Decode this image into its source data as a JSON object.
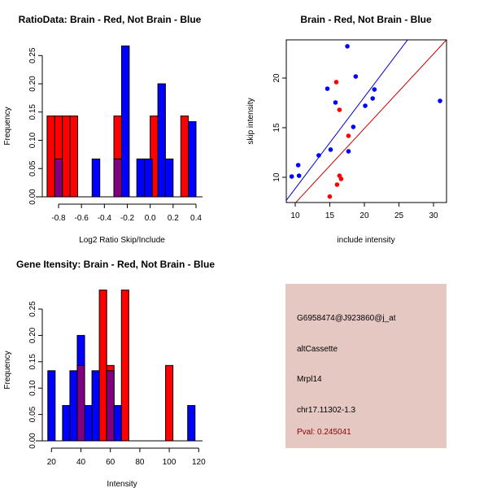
{
  "chart_data": [
    {
      "type": "bar",
      "subtype": "histogram",
      "title": "RatioData: Brain - Red, Not Brain - Blue",
      "xlabel": "Log2 Ratio Skip/Include",
      "ylabel": "Frequency",
      "xlim": [
        -0.9,
        0.4
      ],
      "ylim": [
        0,
        0.27
      ],
      "xticks": [
        "-0.8",
        "-0.6",
        "-0.4",
        "-0.2",
        "0.0",
        "0.2",
        "0.4"
      ],
      "xtick_values": [
        -0.8,
        -0.6,
        -0.4,
        -0.2,
        0.0,
        0.2,
        0.4
      ],
      "yticks": [
        "0.00",
        "0.05",
        "0.10",
        "0.15",
        "0.20",
        "0.25"
      ],
      "ytick_values": [
        0,
        0.05,
        0.1,
        0.15,
        0.2,
        0.25
      ],
      "series": [
        {
          "name": "Brain",
          "color": "#ff0000",
          "bins": [
            [
              -0.9,
              -0.833,
              0.143
            ],
            [
              -0.833,
              -0.767,
              0.143
            ],
            [
              -0.767,
              -0.7,
              0.143
            ],
            [
              -0.7,
              -0.633,
              0.143
            ],
            [
              -0.317,
              -0.25,
              0.143
            ],
            [
              0.0,
              0.067,
              0.143
            ],
            [
              0.267,
              0.333,
              0.143
            ]
          ]
        },
        {
          "name": "Not Brain",
          "color": "#0000ff",
          "bins": [
            [
              -0.833,
              -0.767,
              0.067
            ],
            [
              -0.507,
              -0.44,
              0.067
            ],
            [
              -0.317,
              -0.25,
              0.067
            ],
            [
              -0.25,
              -0.183,
              0.267
            ],
            [
              -0.117,
              -0.05,
              0.067
            ],
            [
              -0.05,
              0.017,
              0.067
            ],
            [
              0.067,
              0.133,
              0.2
            ],
            [
              0.133,
              0.2,
              0.067
            ],
            [
              0.333,
              0.4,
              0.133
            ]
          ]
        }
      ],
      "overlap_color": "#800080"
    },
    {
      "type": "scatter",
      "title": "Brain - Red, Not Brain - Blue",
      "xlabel": "include intensity",
      "ylabel": "skip intensity",
      "xlim": [
        8.71,
        31.88
      ],
      "ylim": [
        7.46,
        23.85
      ],
      "xticks": [
        "10",
        "15",
        "20",
        "25",
        "30"
      ],
      "xtick_values": [
        10,
        15,
        20,
        25,
        30
      ],
      "yticks": [
        "10",
        "15",
        "20"
      ],
      "ytick_values": [
        10,
        15,
        20
      ],
      "series": [
        {
          "name": "Brain",
          "color": "#ff0000",
          "points": [
            [
              15.94,
              19.59
            ],
            [
              16.4,
              16.8
            ],
            [
              17.7,
              14.18
            ],
            [
              16.4,
              10.16
            ],
            [
              16.64,
              9.84
            ],
            [
              16.05,
              9.26
            ],
            [
              15.0,
              8.06
            ]
          ]
        },
        {
          "name": "Not Brain",
          "color": "#0000ff",
          "points": [
            [
              17.54,
              23.2
            ],
            [
              18.75,
              20.16
            ],
            [
              14.65,
              18.93
            ],
            [
              21.45,
              18.85
            ],
            [
              21.2,
              17.95
            ],
            [
              15.82,
              17.54
            ],
            [
              20.12,
              17.21
            ],
            [
              30.94,
              17.7
            ],
            [
              18.4,
              15.08
            ],
            [
              15.12,
              12.79
            ],
            [
              17.7,
              12.62
            ],
            [
              13.4,
              12.21
            ],
            [
              10.43,
              11.23
            ],
            [
              10.55,
              10.16
            ],
            [
              9.49,
              10.08
            ]
          ]
        }
      ],
      "lines": [
        {
          "name": "Brain fit",
          "color": "#cc0000",
          "slope": 0.752,
          "intercept": -0.12
        },
        {
          "name": "Not Brain fit",
          "color": "#0000cc",
          "slope": 0.922,
          "intercept": -0.35
        }
      ]
    },
    {
      "type": "bar",
      "subtype": "histogram",
      "title": "Gene Itensity: Brain - Red, Not Brain - Blue",
      "xlabel": "Intensity",
      "ylabel": "Frequency",
      "xlim": [
        17.5,
        120
      ],
      "ylim": [
        0,
        0.29
      ],
      "xticks": [
        "20",
        "40",
        "60",
        "80",
        "100",
        "120"
      ],
      "xtick_values": [
        20,
        40,
        60,
        80,
        100,
        120
      ],
      "yticks": [
        "0.00",
        "0.05",
        "0.10",
        "0.15",
        "0.20",
        "0.25"
      ],
      "ytick_values": [
        0,
        0.05,
        0.1,
        0.15,
        0.2,
        0.25
      ],
      "series": [
        {
          "name": "Brain",
          "color": "#ff0000",
          "bins": [
            [
              37.5,
              42.5,
              0.143
            ],
            [
              52.5,
              57.5,
              0.286
            ],
            [
              57.5,
              62.5,
              0.143
            ],
            [
              67.5,
              72.5,
              0.286
            ],
            [
              97.5,
              102.5,
              0.143
            ]
          ]
        },
        {
          "name": "Not Brain",
          "color": "#0000ff",
          "bins": [
            [
              17.5,
              22.5,
              0.133
            ],
            [
              27.5,
              32.5,
              0.067
            ],
            [
              32.5,
              37.5,
              0.133
            ],
            [
              37.5,
              42.5,
              0.2
            ],
            [
              42.5,
              47.5,
              0.067
            ],
            [
              47.5,
              52.5,
              0.133
            ],
            [
              57.5,
              62.5,
              0.133
            ],
            [
              62.5,
              67.5,
              0.067
            ],
            [
              112.5,
              117.5,
              0.067
            ]
          ]
        }
      ],
      "overlap_color": "#800080"
    }
  ],
  "info": {
    "probe": "G6958474@J923860@j_at",
    "type": "altCassette",
    "gene": "Mrpl14",
    "location": "chr17.11302-1.3",
    "pval": "Pval: 0.245041",
    "background": "#e6c8c3",
    "pval_color": "#8b0000"
  }
}
